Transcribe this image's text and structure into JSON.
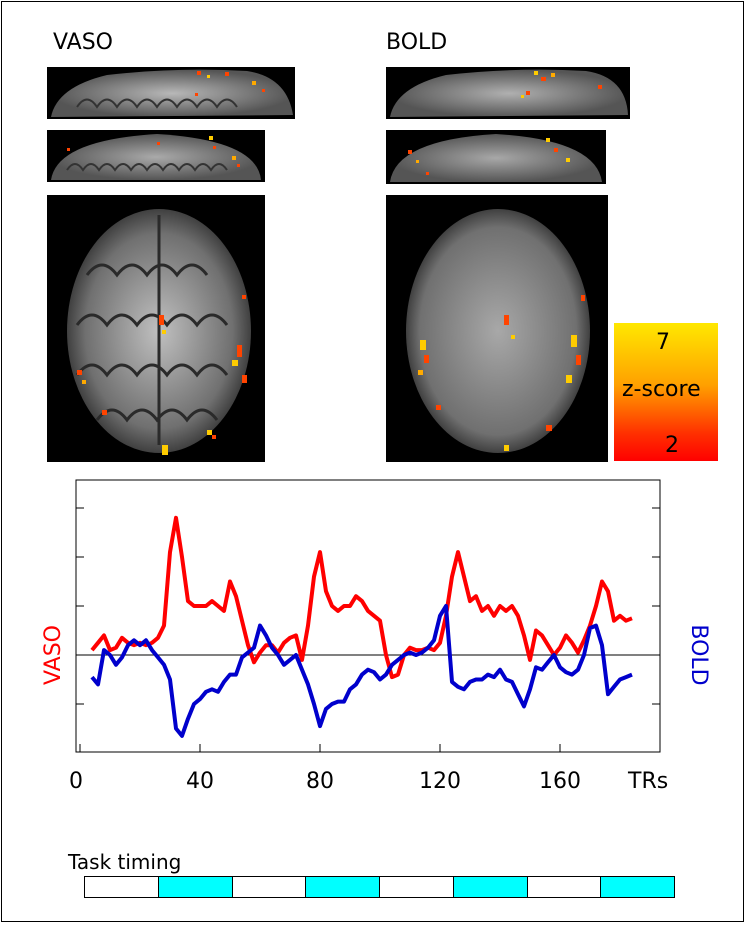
{
  "panels": {
    "vaso_label": "VASO",
    "bold_label": "BOLD"
  },
  "colorbar": {
    "max_label": "7",
    "title": "z-score",
    "min_label": "2",
    "colors": [
      "#ffe800",
      "#ffa000",
      "#ff3000",
      "#ff0000"
    ]
  },
  "colors": {
    "vaso": "#ff0000",
    "bold": "#0000cc",
    "task_on": "#00ffff",
    "task_off": "#ffffff"
  },
  "chart_data": {
    "type": "line",
    "xlabel": "TRs",
    "xlim": [
      0,
      185
    ],
    "x_ticks": [
      0,
      40,
      80,
      120,
      160
    ],
    "y_left_label": "VASO",
    "y_right_label": "BOLD",
    "grid": false,
    "zero_line": true,
    "series": [
      {
        "name": "VASO",
        "x": [
          4,
          6,
          8,
          10,
          12,
          14,
          16,
          18,
          20,
          22,
          24,
          26,
          28,
          30,
          32,
          34,
          36,
          38,
          40,
          42,
          44,
          46,
          48,
          50,
          52,
          54,
          56,
          58,
          60,
          62,
          64,
          66,
          68,
          70,
          72,
          74,
          76,
          78,
          80,
          82,
          84,
          86,
          88,
          90,
          92,
          94,
          96,
          98,
          100,
          102,
          104,
          106,
          108,
          110,
          112,
          114,
          116,
          118,
          120,
          122,
          124,
          126,
          128,
          130,
          132,
          134,
          136,
          138,
          140,
          142,
          144,
          146,
          148,
          150,
          152,
          154,
          156,
          158,
          160,
          162,
          164,
          166,
          168,
          170,
          172,
          174,
          176,
          178,
          180,
          182,
          184
        ],
        "y": [
          0.1,
          0.25,
          0.4,
          0.1,
          0.15,
          0.35,
          0.25,
          0.2,
          0.25,
          0.2,
          0.25,
          0.35,
          0.6,
          2.1,
          2.8,
          2.0,
          1.1,
          1.0,
          1.0,
          1.0,
          1.1,
          1.0,
          0.9,
          1.5,
          1.2,
          0.7,
          0.2,
          -0.15,
          0.05,
          0.2,
          0.2,
          0.05,
          0.25,
          0.35,
          0.4,
          -0.1,
          0.6,
          1.6,
          2.1,
          1.3,
          1.0,
          0.9,
          1.0,
          1.0,
          1.2,
          1.1,
          0.9,
          0.8,
          0.7,
          0.0,
          -0.45,
          -0.4,
          0.0,
          0.15,
          0.1,
          0.1,
          0.15,
          0.1,
          0.25,
          0.8,
          1.6,
          2.1,
          1.6,
          1.1,
          1.2,
          0.9,
          1.0,
          0.8,
          1.0,
          0.9,
          1.0,
          0.8,
          0.4,
          -0.1,
          0.5,
          0.4,
          0.2,
          0.0,
          0.15,
          0.4,
          0.25,
          0.05,
          0.3,
          0.6,
          1.0,
          1.5,
          1.3,
          0.7,
          0.8,
          0.7,
          0.75
        ]
      },
      {
        "name": "BOLD",
        "x": [
          4,
          6,
          8,
          10,
          12,
          14,
          16,
          18,
          20,
          22,
          24,
          26,
          28,
          30,
          32,
          34,
          36,
          38,
          40,
          42,
          44,
          46,
          48,
          50,
          52,
          54,
          56,
          58,
          60,
          62,
          64,
          66,
          68,
          70,
          72,
          74,
          76,
          78,
          80,
          82,
          84,
          86,
          88,
          90,
          92,
          94,
          96,
          98,
          100,
          102,
          104,
          106,
          108,
          110,
          112,
          114,
          116,
          118,
          120,
          122,
          124,
          126,
          128,
          130,
          132,
          134,
          136,
          138,
          140,
          142,
          144,
          146,
          148,
          150,
          152,
          154,
          156,
          158,
          160,
          162,
          164,
          166,
          168,
          170,
          172,
          174,
          176,
          178,
          180,
          182,
          184
        ],
        "y": [
          -0.45,
          -0.6,
          0.1,
          0.0,
          -0.2,
          -0.05,
          0.2,
          0.3,
          0.2,
          0.3,
          0.1,
          -0.05,
          -0.2,
          -0.5,
          -1.5,
          -1.65,
          -1.3,
          -1.0,
          -0.9,
          -0.75,
          -0.7,
          -0.75,
          -0.55,
          -0.4,
          -0.4,
          -0.05,
          0.05,
          0.15,
          0.6,
          0.4,
          0.15,
          0.0,
          -0.2,
          -0.1,
          0.0,
          -0.3,
          -0.6,
          -1.0,
          -1.45,
          -1.1,
          -1.0,
          -0.95,
          -0.95,
          -0.7,
          -0.6,
          -0.4,
          -0.3,
          -0.35,
          -0.5,
          -0.4,
          -0.2,
          -0.1,
          0.0,
          0.05,
          0.0,
          0.05,
          0.15,
          0.3,
          0.8,
          1.0,
          -0.55,
          -0.65,
          -0.7,
          -0.55,
          -0.5,
          -0.5,
          -0.4,
          -0.45,
          -0.3,
          -0.5,
          -0.55,
          -0.8,
          -1.05,
          -0.7,
          -0.25,
          -0.3,
          -0.15,
          0.0,
          -0.25,
          -0.35,
          -0.4,
          -0.3,
          0.0,
          0.55,
          0.6,
          0.2,
          -0.8,
          -0.65,
          -0.5,
          -0.45,
          -0.4
        ]
      }
    ],
    "task_timing": {
      "label": "Task timing",
      "blocks": [
        "off",
        "on",
        "off",
        "on",
        "off",
        "on",
        "off",
        "on"
      ]
    }
  }
}
